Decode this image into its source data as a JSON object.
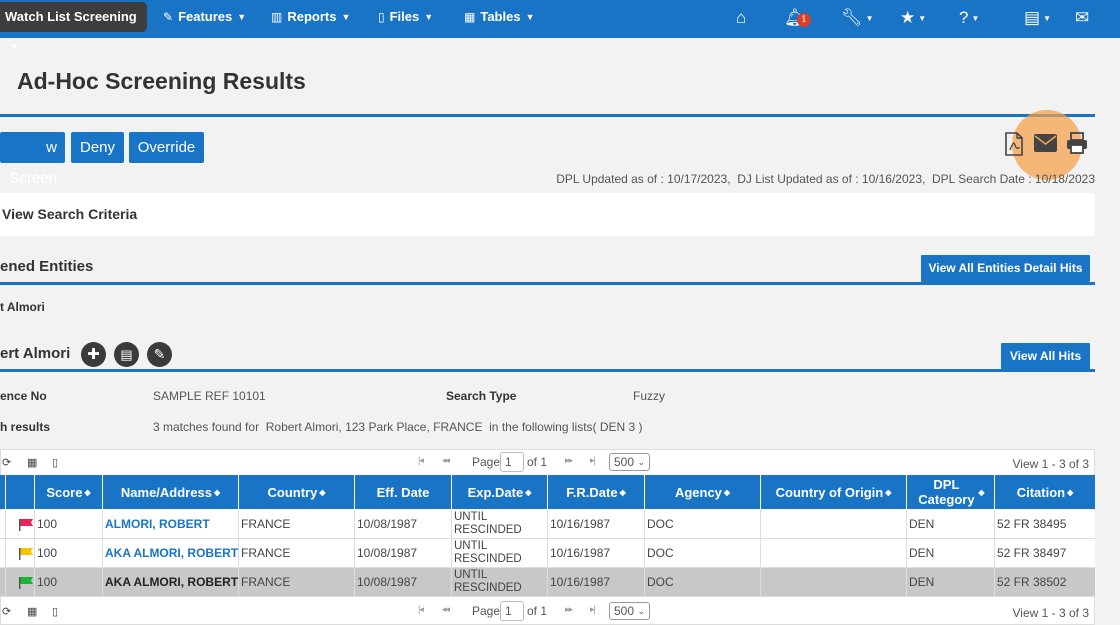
{
  "nav": {
    "active": "Watch List Screening",
    "items": [
      {
        "label": "Features",
        "icon": "pencil-icon"
      },
      {
        "label": "Reports",
        "icon": "bar-chart-icon"
      },
      {
        "label": "Files",
        "icon": "file-icon"
      },
      {
        "label": "Tables",
        "icon": "table-icon"
      }
    ],
    "notification_count": "1"
  },
  "page": {
    "title": "Ad-Hoc Screening Results"
  },
  "actions": {
    "screen": "w Screen",
    "deny": "Deny",
    "override": "Override"
  },
  "dates_line": "DPL Updated as of : 10/17/2023,  DJ List Updated as of : 10/16/2023,  DPL Search Date : 10/18/2023",
  "criteria_label": "View Search Criteria",
  "entities": {
    "title": "ened Entities",
    "button": "View All Entities Detail Hits",
    "name": "t Almori"
  },
  "entity": {
    "name": "ert Almori",
    "button": "View All Hits",
    "ref_label": "ence No",
    "ref_value": "SAMPLE REF 10101",
    "search_type_label": "Search Type",
    "search_type_value": "Fuzzy",
    "results_label": "h results",
    "results_value": "3 matches found for  Robert Almori, 123 Park Place, FRANCE  in the following lists( DEN 3 )"
  },
  "pager": {
    "page_label": "Page",
    "page_value": "1",
    "of_label": "of 1",
    "rows_value": "500",
    "view": "View 1 - 3 of 3"
  },
  "table": {
    "headers": [
      "Score",
      "Name/Address",
      "Country",
      "Eff. Date",
      "Exp.Date",
      "F.R.Date",
      "Agency",
      "Country of Origin",
      "DPL Category",
      "Citation"
    ],
    "rows": [
      {
        "flag": "#e8245a",
        "score": "100",
        "name": "ALMORI, ROBERT",
        "country": "FRANCE",
        "eff": "10/08/1987",
        "exp": "UNTIL RESCINDED",
        "fr": "10/16/1987",
        "agency": "DOC",
        "origin": "",
        "dpl": "DEN",
        "citation": "52 FR 38495"
      },
      {
        "flag": "#f5c400",
        "score": "100",
        "name": "AKA ALMORI, ROBERT",
        "country": "FRANCE",
        "eff": "10/08/1987",
        "exp": "UNTIL RESCINDED",
        "fr": "10/16/1987",
        "agency": "DOC",
        "origin": "",
        "dpl": "DEN",
        "citation": "52 FR 38497"
      },
      {
        "flag": "#1db336",
        "score": "100",
        "name": "AKA ALMORI, ROBERT",
        "country": "FRANCE",
        "eff": "10/08/1987",
        "exp": "UNTIL RESCINDED",
        "fr": "10/16/1987",
        "agency": "DOC",
        "origin": "",
        "dpl": "DEN",
        "citation": "52 FR 38502"
      }
    ]
  }
}
